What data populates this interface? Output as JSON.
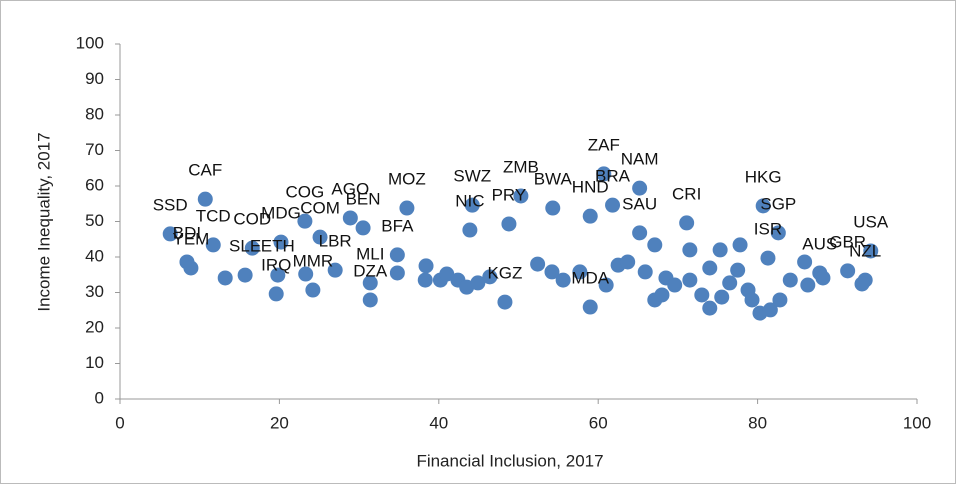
{
  "chart_data": {
    "type": "scatter",
    "x_label": "Financial Inclusion, 2017",
    "y_label": "Income Inequality, 2017",
    "color": "#4f81bd",
    "xlim": [
      0,
      100
    ],
    "xticks": [
      0,
      20,
      40,
      60,
      80,
      100
    ],
    "ylim": [
      0,
      100
    ],
    "yticks": [
      0,
      10,
      20,
      30,
      40,
      50,
      60,
      70,
      80,
      90,
      100
    ],
    "x": [
      10.7,
      6.3,
      8.4,
      8.9,
      11.7,
      15.7,
      16.6,
      20.2,
      19.8,
      19.6,
      23.2,
      25.1,
      28.9,
      30.5,
      24.2,
      27.0,
      31.4,
      31.4,
      36.0,
      34.8,
      44.2,
      43.9,
      50.3,
      48.8,
      54.3,
      48.3,
      60.7,
      61.8,
      65.2,
      59.0,
      65.2,
      59.0,
      71.1,
      80.7,
      82.6,
      81.3,
      94.2,
      91.3,
      87.8,
      93.5,
      34.8,
      38.3,
      38.4,
      40.2,
      41.0,
      42.4,
      43.5,
      44.9,
      46.4,
      52.4,
      54.2,
      55.6,
      57.7,
      61.0,
      62.5,
      63.7,
      65.9,
      67.1,
      68.0,
      68.5,
      69.6,
      71.5,
      73.0,
      74.0,
      75.5,
      76.5,
      77.5,
      78.8,
      79.3,
      80.3,
      81.6,
      82.8,
      84.1,
      85.9,
      86.3,
      88.2,
      93.1,
      67.1,
      71.5,
      75.3,
      77.8,
      74.0,
      13.2,
      23.3
    ],
    "values": [
      56.3,
      46.5,
      38.6,
      36.9,
      43.4,
      34.9,
      42.5,
      44.2,
      34.9,
      29.6,
      50.1,
      45.6,
      51.0,
      48.2,
      30.7,
      36.3,
      27.9,
      32.7,
      53.8,
      40.6,
      54.6,
      47.6,
      57.2,
      49.3,
      53.8,
      27.3,
      63.4,
      54.6,
      59.4,
      51.5,
      46.8,
      25.9,
      49.6,
      54.4,
      46.8,
      39.7,
      41.7,
      36.1,
      35.5,
      33.5,
      35.5,
      33.5,
      37.5,
      33.5,
      35.2,
      33.5,
      31.5,
      32.7,
      34.4,
      38.0,
      35.8,
      33.5,
      35.8,
      32.1,
      37.7,
      38.6,
      35.8,
      27.9,
      29.3,
      34.1,
      32.1,
      33.5,
      29.3,
      25.6,
      28.7,
      32.7,
      36.3,
      30.7,
      27.9,
      24.2,
      25.1,
      27.9,
      33.5,
      38.6,
      32.1,
      34.1,
      32.4,
      43.4,
      42.0,
      42.0,
      43.4,
      36.9,
      34.1,
      35.2
    ],
    "labels": [
      "CAF",
      "SSD",
      "BDI",
      "YEM",
      "TCD",
      "SLE",
      "COD",
      "MDG",
      "ETH",
      "IRQ",
      "COG",
      "COM",
      "AGO",
      "BEN",
      "MMR",
      "LBR",
      "DZA",
      "MLI",
      "MOZ",
      "BFA",
      "SWZ",
      "NIC",
      "ZMB",
      "PRY",
      "BWA",
      "KGZ",
      "ZAF",
      "BRA",
      "NAM",
      "HND",
      "SAU",
      "MDA",
      "CRI",
      "HKG",
      "SGP",
      "ISR",
      "USA",
      "GBR",
      "AUS",
      "NZL",
      null,
      null,
      null,
      null,
      null,
      null,
      null,
      null,
      null,
      null,
      null,
      null,
      null,
      null,
      null,
      null,
      null,
      null,
      null,
      null,
      null,
      null,
      null,
      null,
      null,
      null,
      null,
      null,
      null,
      null,
      null,
      null,
      null,
      null,
      null,
      null,
      null,
      null,
      null,
      null,
      null,
      null,
      null,
      null
    ]
  }
}
